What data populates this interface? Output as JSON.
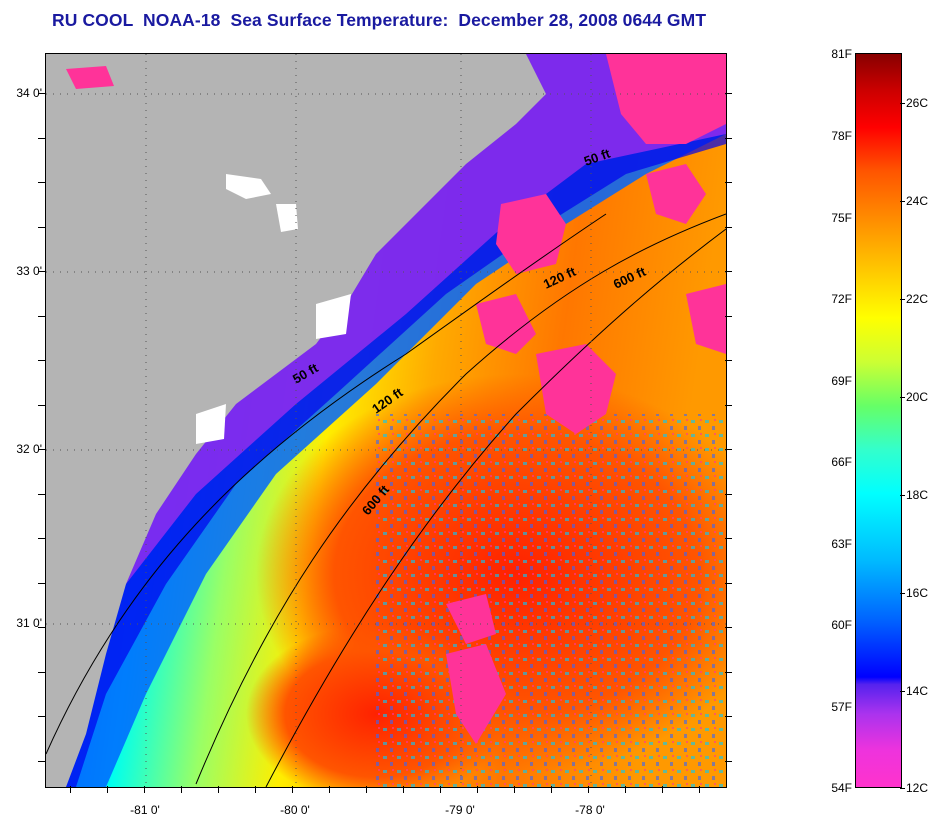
{
  "title": "RU COOL  NOAA-18  Sea Surface Temperature:  December 28, 2008 0644 GMT",
  "map": {
    "lat_labels": [
      "34 0'",
      "33 0'",
      "32 0'",
      "31 0'"
    ],
    "lon_labels": [
      "-81 0'",
      "-80 0'",
      "-79 0'",
      "-78 0'"
    ],
    "depth_contours": [
      "50 ft",
      "120 ft",
      "600 ft"
    ],
    "colors": {
      "land": "#b4b4b4",
      "cloud": "#ff3399",
      "cold": "#0000ff",
      "warm": "#ff3300"
    }
  },
  "colorbar": {
    "fahrenheit": [
      "81F",
      "78F",
      "75F",
      "72F",
      "69F",
      "66F",
      "63F",
      "60F",
      "57F",
      "54F"
    ],
    "celsius": [
      "26C",
      "24C",
      "22C",
      "20C",
      "18C",
      "16C",
      "14C",
      "12C"
    ]
  }
}
